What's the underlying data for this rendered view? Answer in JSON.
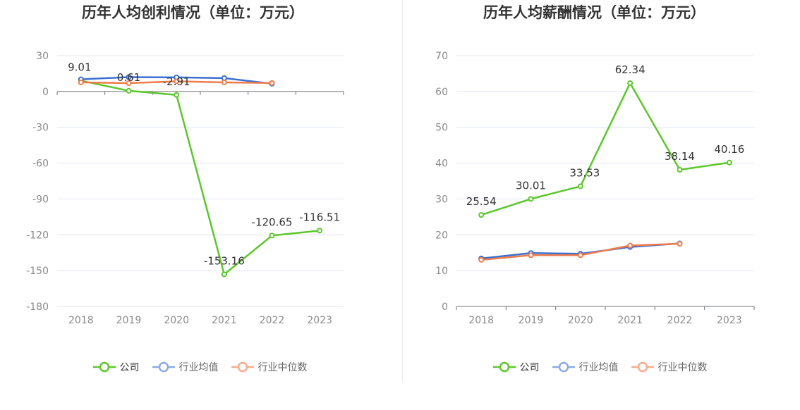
{
  "chart_data": [
    {
      "type": "line",
      "title": "历年人均创利情况（单位：万元）",
      "x": [
        "2018",
        "2019",
        "2020",
        "2021",
        "2022",
        "2023"
      ],
      "ylim": [
        -180,
        30
      ],
      "yticks": [
        30,
        0,
        -30,
        -60,
        -90,
        -120,
        -150,
        -180
      ],
      "grid": true,
      "legend_placement": "bottom-center",
      "series": [
        {
          "name": "公司",
          "color": "#5cc72c",
          "values": [
            9.01,
            0.61,
            -2.91,
            -153.16,
            -120.65,
            -116.51
          ],
          "labels": [
            "9.01",
            "0.61",
            "-2.91",
            "-153.16",
            "-120.65",
            "-116.51"
          ]
        },
        {
          "name": "行业均值",
          "color": "#3d6fd1",
          "values": [
            10.2,
            12.0,
            11.8,
            11.2,
            6.5,
            null
          ],
          "labels": []
        },
        {
          "name": "行业中位数",
          "color": "#f07c4a",
          "values": [
            7.6,
            7.0,
            8.5,
            7.6,
            7.1,
            null
          ],
          "labels": []
        }
      ]
    },
    {
      "type": "line",
      "title": "历年人均薪酬情况（单位：万元）",
      "x": [
        "2018",
        "2019",
        "2020",
        "2021",
        "2022",
        "2023"
      ],
      "ylim": [
        0,
        70
      ],
      "yticks": [
        70,
        60,
        50,
        40,
        30,
        20,
        10,
        0
      ],
      "grid": true,
      "legend_placement": "bottom-center",
      "series": [
        {
          "name": "公司",
          "color": "#5cc72c",
          "values": [
            25.54,
            30.01,
            33.53,
            62.34,
            38.14,
            40.16
          ],
          "labels": [
            "25.54",
            "30.01",
            "33.53",
            "62.34",
            "38.14",
            "40.16"
          ]
        },
        {
          "name": "行业均值",
          "color": "#3d6fd1",
          "values": [
            13.4,
            14.9,
            14.7,
            16.6,
            17.6,
            null
          ],
          "labels": []
        },
        {
          "name": "行业中位数",
          "color": "#f07c4a",
          "values": [
            13.0,
            14.3,
            14.3,
            17.0,
            17.5,
            null
          ],
          "labels": []
        }
      ]
    }
  ]
}
